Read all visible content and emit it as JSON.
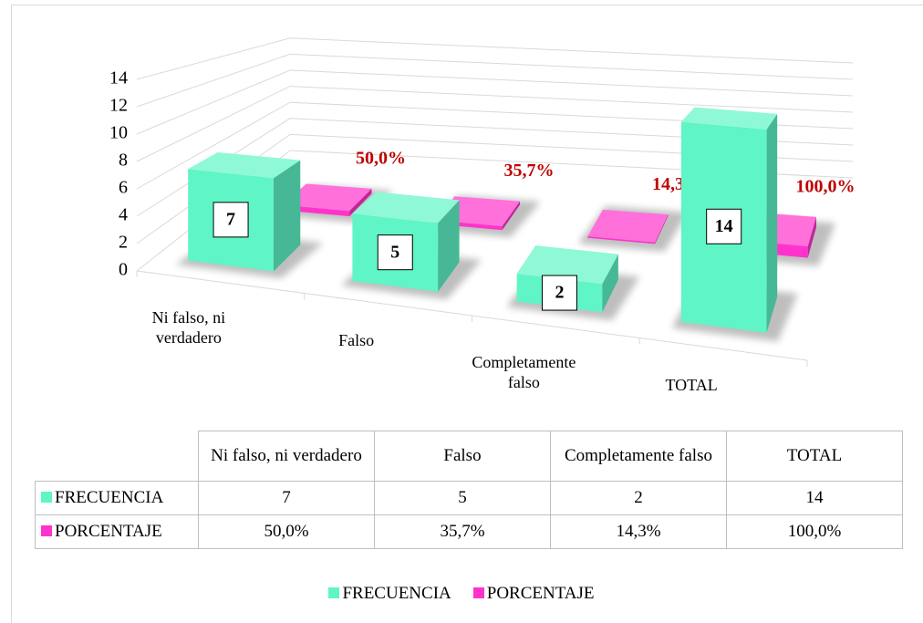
{
  "chart_data": {
    "type": "bar3d",
    "categories": [
      "Ni falso, ni verdadero",
      "Falso",
      "Completamente falso",
      "TOTAL"
    ],
    "series": [
      {
        "name": "FRECUENCIA",
        "color": "#5ff5c6",
        "values": [
          7,
          5,
          2,
          14
        ]
      },
      {
        "name": "PORCENTAJE",
        "color": "#ff33cc",
        "values": [
          0.5,
          0.357,
          0.143,
          1.0
        ],
        "value_labels": [
          "50,0%",
          "35,7%",
          "14,3%",
          "100,0%"
        ],
        "label_color": "#c00000"
      }
    ],
    "ylim": [
      0,
      14
    ],
    "yticks": [
      0,
      2,
      4,
      6,
      8,
      10,
      12,
      14
    ],
    "grid": true,
    "legend": "bottom",
    "data_table": true
  }
}
